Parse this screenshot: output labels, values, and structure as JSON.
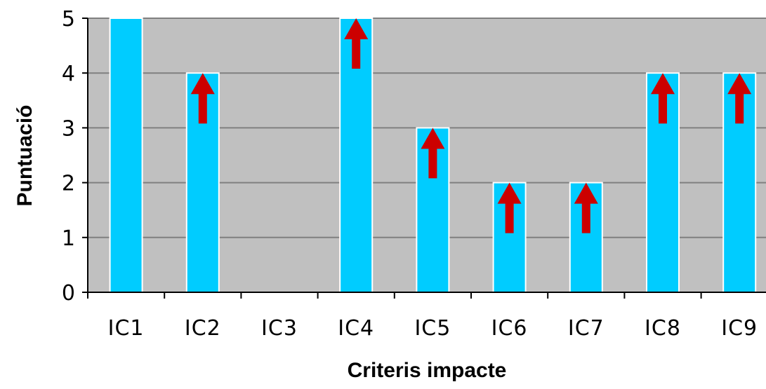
{
  "chart_data": {
    "type": "bar",
    "title": "",
    "xlabel": "Criteris impacte",
    "ylabel": "Puntuació",
    "categories": [
      "IC1",
      "IC2",
      "IC3",
      "IC4",
      "IC5",
      "IC6",
      "IC7",
      "IC8",
      "IC9"
    ],
    "values": [
      5,
      4,
      0,
      5,
      3,
      2,
      2,
      4,
      4
    ],
    "up_arrow": [
      false,
      true,
      false,
      true,
      true,
      true,
      true,
      true,
      true
    ],
    "yticks": [
      0,
      1,
      2,
      3,
      4,
      5
    ],
    "ylim": [
      0,
      5
    ],
    "grid": true,
    "legend": "none",
    "colors": {
      "bar": "#00CCFF",
      "bar_border": "#FFFFFF",
      "plot_background": "#C0C0C0",
      "gridline": "#808080",
      "arrow": "#CC0000"
    }
  }
}
